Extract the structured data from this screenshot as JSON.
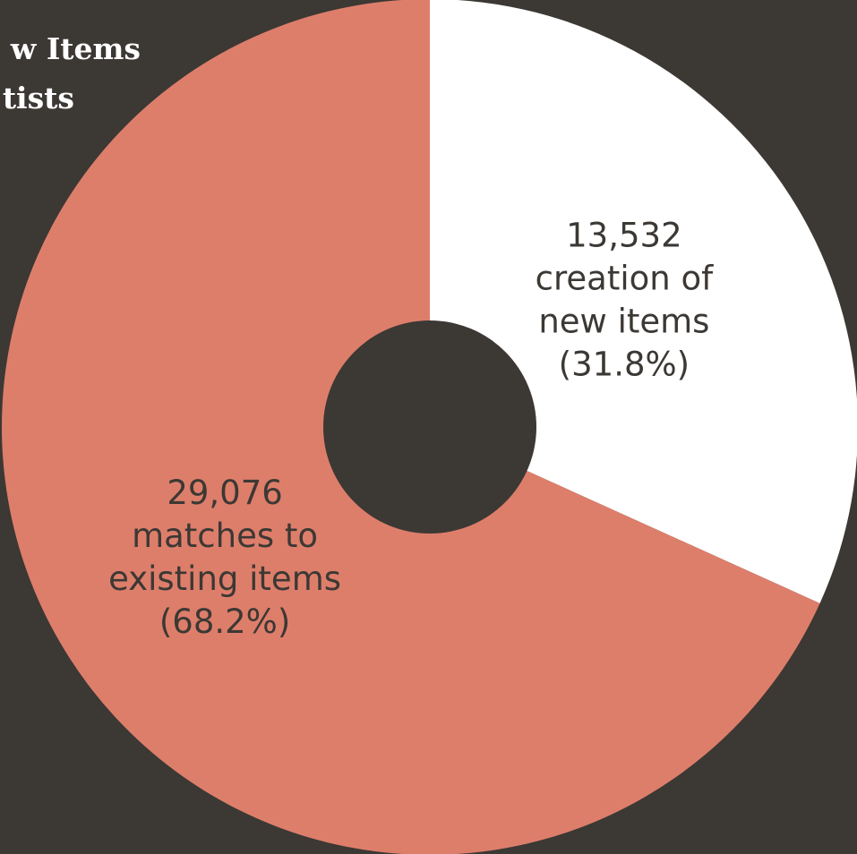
{
  "chart_data": {
    "type": "pie",
    "title_lines": [
      "w Items",
      "tists"
    ],
    "slices": [
      {
        "value": 13532,
        "percent": 31.8,
        "label_lines": [
          "13,532",
          "creation of",
          "new items",
          "(31.8%)"
        ],
        "color": "#ffffff",
        "text_color": "#3c3834"
      },
      {
        "value": 29076,
        "percent": 68.2,
        "label_lines": [
          "29,076",
          "matches to",
          "existing items",
          "(68.2%)"
        ],
        "color": "#dd7e6b",
        "text_color": "#3c3834"
      }
    ],
    "start_angle_deg": 0,
    "direction": "clockwise",
    "donut_hole": true
  },
  "colors": {
    "background": "#3c3834"
  }
}
